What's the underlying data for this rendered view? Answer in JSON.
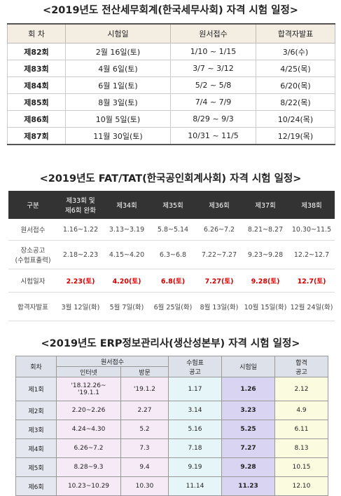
{
  "schedules": [
    {
      "title": "<2019년도 전산세무회계(한국세무사회) 자격 시험 일정>",
      "header": [
        "회 차",
        "시험일",
        "원서접수",
        "합격자발표"
      ],
      "rows": [
        [
          "제82회",
          "2월 16일(토)",
          "1/10 ~ 1/15",
          "3/6(수)"
        ],
        [
          "제83회",
          "4월 6일(토)",
          "3/7 ~ 3/12",
          "4/25(목)"
        ],
        [
          "제84회",
          "6월 1일(토)",
          "5/2 ~ 5/8",
          "6/20(목)"
        ],
        [
          "제85회",
          "8월 3일(토)",
          "7/4 ~ 7/9",
          "8/22(목)"
        ],
        [
          "제86회",
          "10월 5일(토)",
          "8/29 ~ 9/3",
          "10/24(목)"
        ],
        [
          "제87회",
          "11월 30일(토)",
          "10/31 ~ 11/5",
          "12/19(목)"
        ]
      ]
    },
    {
      "title": "<2019년도 FAT/TAT(한국공인회계사회) 자격 시험 일정>",
      "header": [
        "구분",
        "제33회 및\n제6회 완화",
        "제34회",
        "제35회",
        "제36회",
        "제37회",
        "제38회"
      ],
      "rows": [
        [
          "원서접수",
          "1.16~1.22",
          "3.13~3.19",
          "5.8~5.14",
          "6.26~7.2",
          "8.21~8.27",
          "10.30~11.5"
        ],
        [
          "장소공고\n(수험표출력)",
          "2.18~2.23",
          "4.15~4.20",
          "6.3~6.8",
          "7.22~7.27",
          "9.23~9.28",
          "12.2~12.7"
        ],
        [
          "시험일자",
          "2.23(토)",
          "4.20(토)",
          "6.8(토)",
          "7.27(토)",
          "9.28(토)",
          "12.7(토)"
        ],
        [
          "합격자발표",
          "3월 12일(화)",
          "5월 7일(화)",
          "6월 25일(화)",
          "8월 13일(화)",
          "10월 15일(화)",
          "12월 24일(화)"
        ]
      ]
    },
    {
      "title": "<2019년도 ERP정보관리사(생산성본부) 자격 시험 일정>",
      "header": [
        "회차",
        "원서접수",
        "인터넷",
        "방문",
        "수험표\n공고",
        "시험일",
        "합격\n공고"
      ],
      "rows": [
        [
          "제1회",
          "'18.12.26~\n'19.1.1",
          "'19.1.2",
          "1.17",
          "1.26",
          "2.12"
        ],
        [
          "제2회",
          "2.20~2.26",
          "2.27",
          "3.14",
          "3.23",
          "4.9"
        ],
        [
          "제3회",
          "4.24~4.30",
          "5.2",
          "5.16",
          "5.25",
          "6.11"
        ],
        [
          "제4회",
          "6.26~7.2",
          "7.3",
          "7.18",
          "7.27",
          "8.13"
        ],
        [
          "제5회",
          "8.28~9.3",
          "9.4",
          "9.19",
          "9.28",
          "10.15"
        ],
        [
          "제6회",
          "10.23~10.29",
          "10.30",
          "11.14",
          "11.23",
          "12.10"
        ]
      ]
    }
  ]
}
